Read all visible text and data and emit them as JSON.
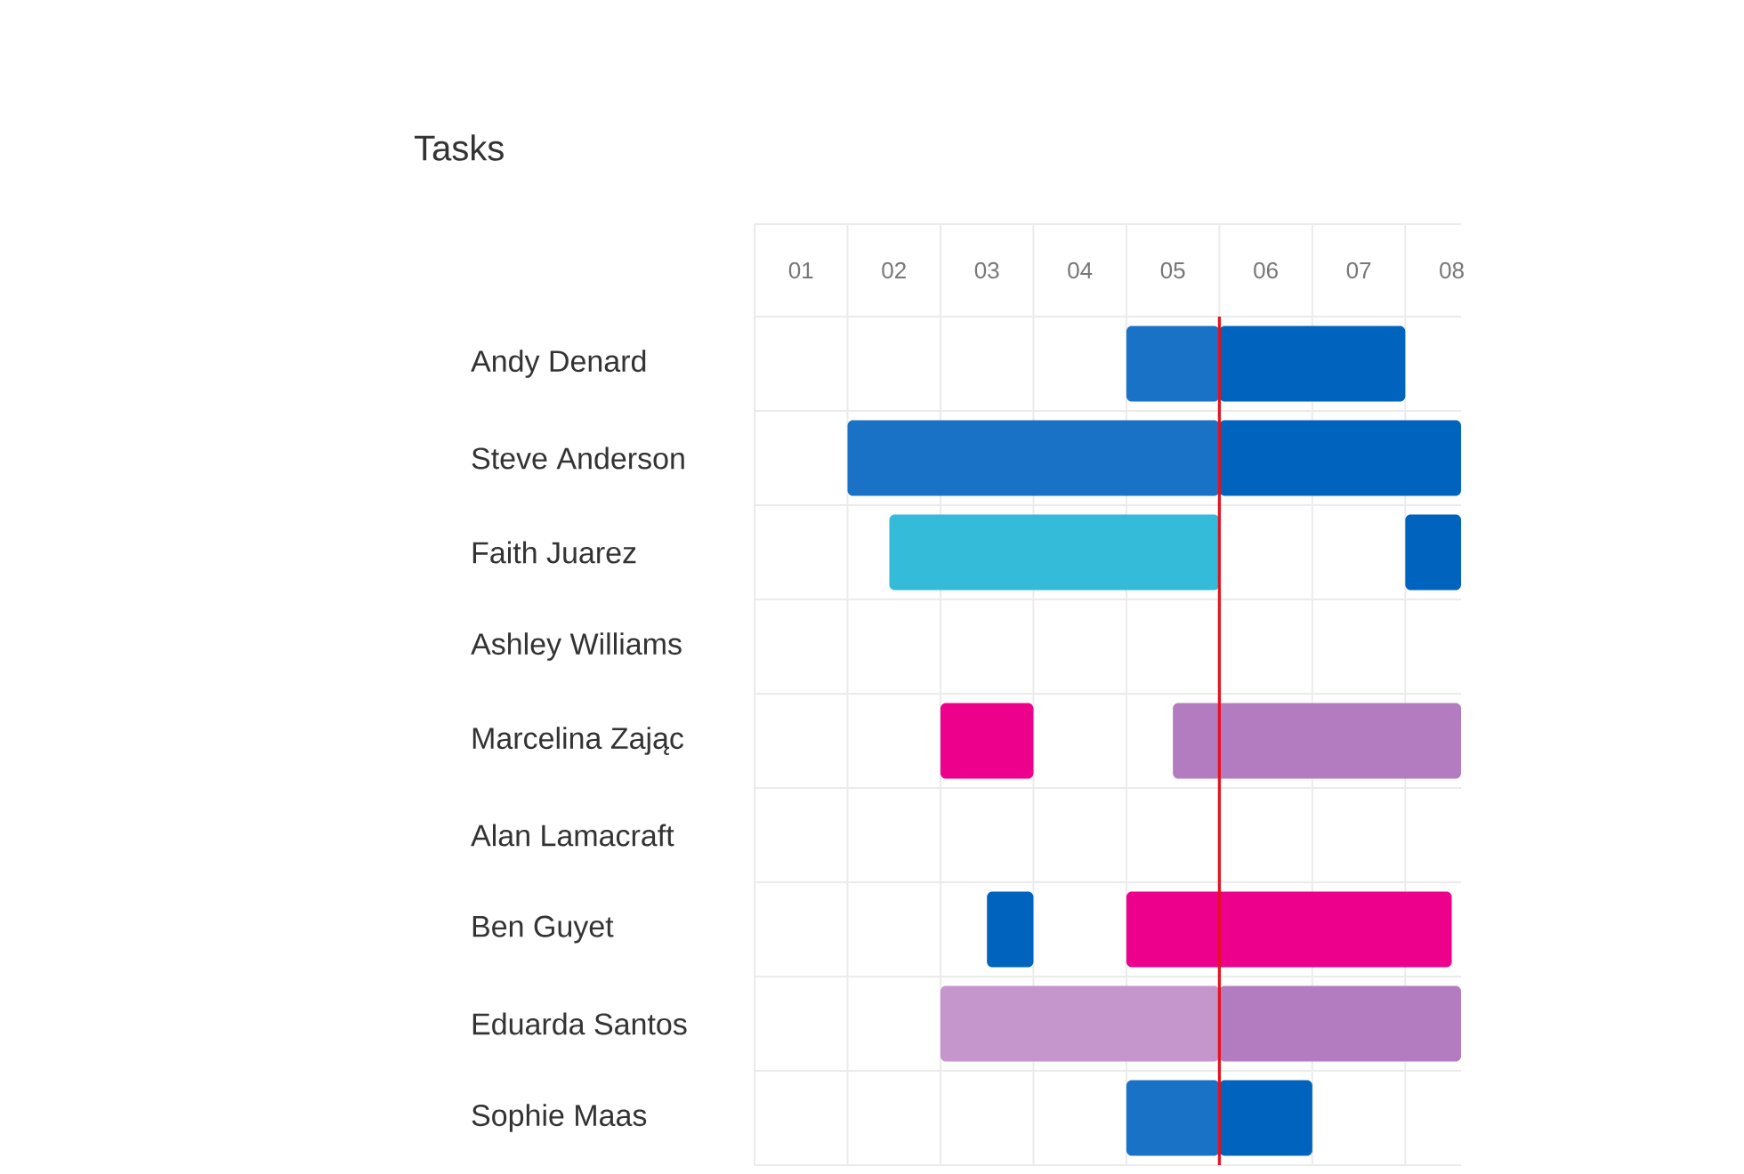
{
  "chart_data": {
    "type": "bar",
    "orientation": "horizontal",
    "title": "Tasks",
    "categories": [
      "Andy Denard",
      "Steve Anderson",
      "Faith Juarez",
      "Ashley Williams",
      "Marcelina Zając",
      "Alan Lamacraft",
      "Ben Guyet",
      "Eduarda Santos",
      "Sophie Maas"
    ],
    "xlim": [
      0,
      7.6
    ],
    "xticks": [
      {
        "value": 0.5,
        "label": "01"
      },
      {
        "value": 1,
        "label": null
      },
      {
        "value": 1.5,
        "label": "02"
      },
      {
        "value": 2,
        "label": null
      },
      {
        "value": 2.5,
        "label": "03"
      },
      {
        "value": 3,
        "label": null
      },
      {
        "value": 3.5,
        "label": "04"
      },
      {
        "value": 4,
        "label": null
      },
      {
        "value": 4.5,
        "label": "05"
      },
      {
        "value": 5,
        "label": null
      },
      {
        "value": 5.5,
        "label": "06"
      },
      {
        "value": 6,
        "label": null
      },
      {
        "value": 6.5,
        "label": "07"
      },
      {
        "value": 7,
        "label": null
      },
      {
        "value": 7.5,
        "label": "08"
      }
    ],
    "grid": true,
    "series": [
      {
        "base": [
          4,
          1,
          1.45,
          null,
          2,
          null,
          2.5,
          2,
          4
        ],
        "values": [
          1,
          4,
          3.55,
          null,
          1,
          null,
          0.5,
          3,
          1
        ],
        "colors": [
          "#1a72c6",
          "#1a72c6",
          "#33bbd9",
          null,
          "#ec008c",
          null,
          "#0063be",
          "#c496cc",
          "#1a72c6"
        ]
      },
      {
        "base": [
          5,
          5,
          7,
          null,
          4.5,
          null,
          4,
          5,
          5
        ],
        "values": [
          2,
          2.6,
          0.6,
          null,
          3.1,
          null,
          3.5,
          2.6,
          1
        ],
        "colors": [
          "#0063be",
          "#0063be",
          "#0063be",
          null,
          "#b47cc0",
          null,
          "#ec008c",
          "#b47cc0",
          "#0063be"
        ]
      }
    ],
    "ref_lines": [
      {
        "axis": "x",
        "value": 5,
        "color": "#e8101c"
      }
    ]
  }
}
